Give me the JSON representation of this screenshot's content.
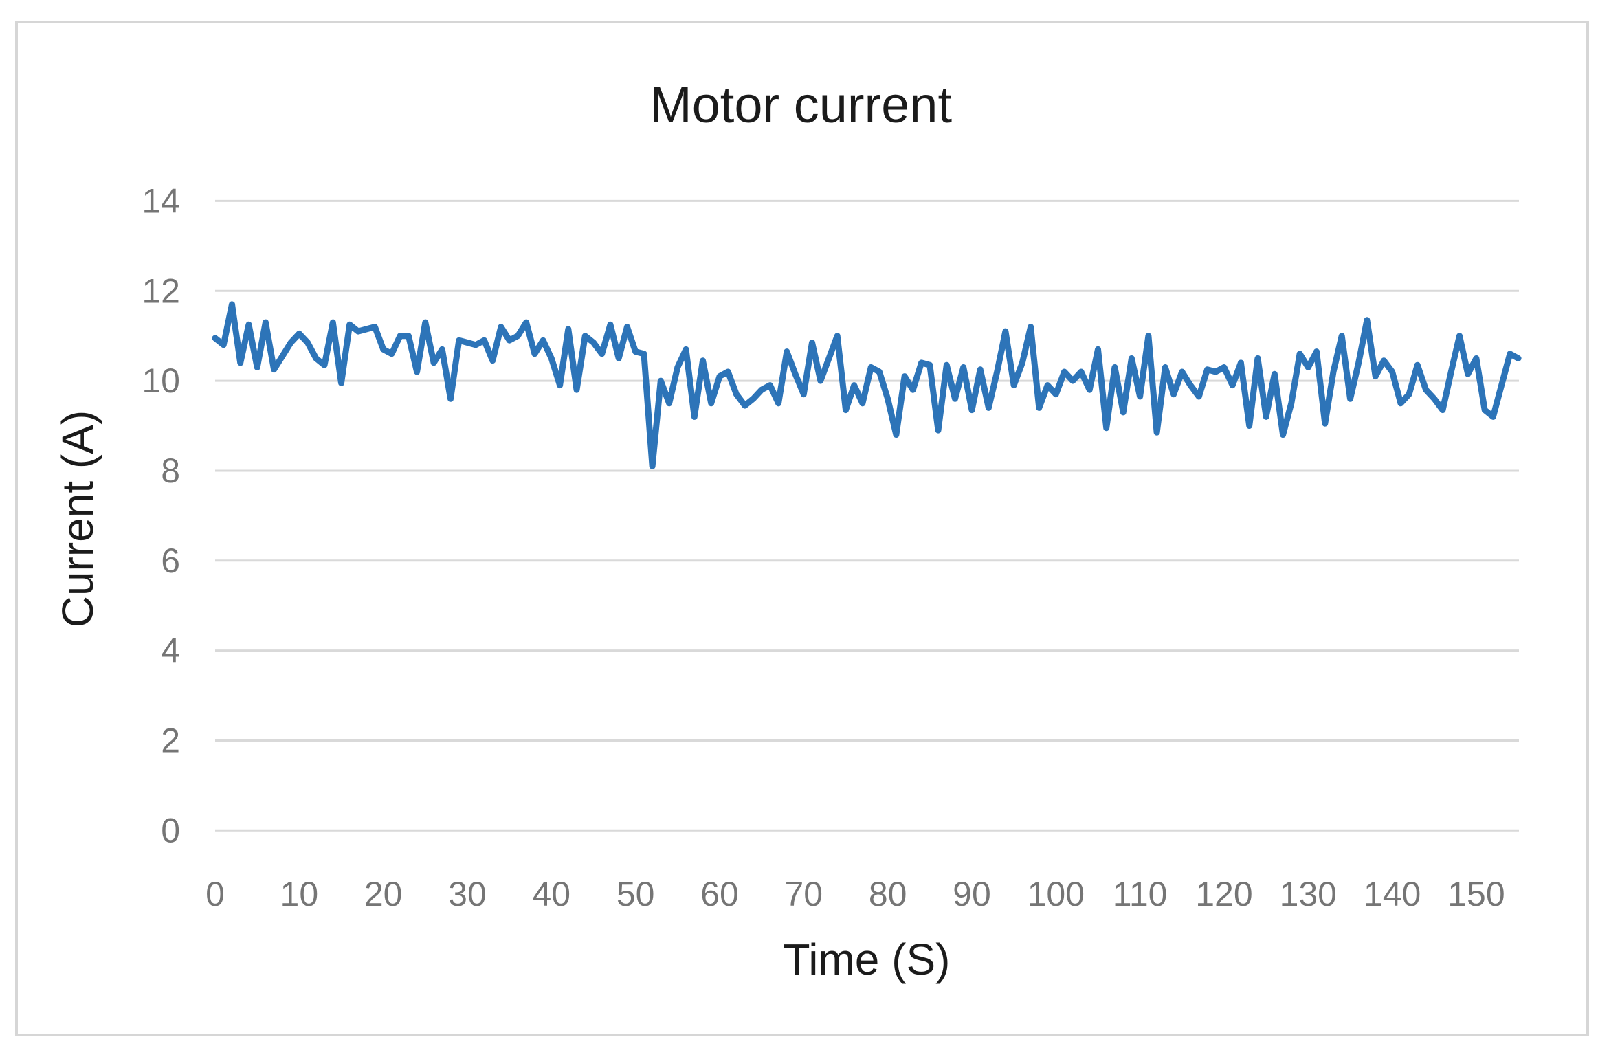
{
  "window": {
    "background": "#ffffff",
    "frame_border_color": "#d6d6d6"
  },
  "chart_data": {
    "type": "line",
    "title": "Motor current",
    "xlabel": "Time (S)",
    "ylabel": "Current (A)",
    "legend": "none",
    "grid": "horizontal",
    "xlim": [
      0,
      155
    ],
    "ylim": [
      0,
      14
    ],
    "x_ticks": [
      0,
      10,
      20,
      30,
      40,
      50,
      60,
      70,
      80,
      90,
      100,
      110,
      120,
      130,
      140,
      150
    ],
    "y_ticks": [
      0,
      2,
      4,
      6,
      8,
      10,
      12,
      14
    ],
    "x_start": 0,
    "x_step": 1,
    "series_name": "Motor current (A)",
    "values": [
      10.95,
      10.8,
      11.7,
      10.4,
      11.25,
      10.3,
      11.3,
      10.25,
      10.55,
      10.85,
      11.05,
      10.85,
      10.5,
      10.35,
      11.3,
      9.95,
      11.25,
      11.1,
      11.15,
      11.2,
      10.7,
      10.6,
      11.0,
      11.0,
      10.2,
      11.3,
      10.4,
      10.7,
      9.6,
      10.9,
      10.85,
      10.8,
      10.9,
      10.45,
      11.2,
      10.9,
      11.0,
      11.3,
      10.6,
      10.9,
      10.5,
      9.9,
      11.15,
      9.8,
      11.0,
      10.85,
      10.6,
      11.25,
      10.5,
      11.2,
      10.65,
      10.6,
      8.1,
      10.0,
      9.5,
      10.3,
      10.7,
      9.2,
      10.45,
      9.5,
      10.1,
      10.2,
      9.7,
      9.45,
      9.6,
      9.8,
      9.9,
      9.5,
      10.65,
      10.15,
      9.7,
      10.85,
      10.0,
      10.5,
      11.0,
      9.35,
      9.9,
      9.5,
      10.3,
      10.2,
      9.6,
      8.8,
      10.1,
      9.8,
      10.4,
      10.35,
      8.9,
      10.35,
      9.6,
      10.3,
      9.35,
      10.25,
      9.4,
      10.2,
      11.1,
      9.9,
      10.4,
      11.2,
      9.4,
      9.9,
      9.7,
      10.2,
      10.0,
      10.2,
      9.8,
      10.7,
      8.95,
      10.3,
      9.3,
      10.5,
      9.65,
      11.0,
      8.85,
      10.3,
      9.7,
      10.2,
      9.9,
      9.65,
      10.25,
      10.2,
      10.3,
      9.9,
      10.4,
      9.0,
      10.5,
      9.2,
      10.15,
      8.8,
      9.5,
      10.6,
      10.3,
      10.65,
      9.05,
      10.2,
      11.0,
      9.6,
      10.4,
      11.35,
      10.1,
      10.45,
      10.2,
      9.5,
      9.7,
      10.35,
      9.8,
      9.6,
      9.35,
      10.2,
      11.0,
      10.15,
      10.5,
      9.35,
      9.2,
      9.9,
      10.6,
      10.5
    ],
    "line_color": "#2d74b8",
    "gridline_color": "#d9d9d9",
    "tick_label_color": "#757575",
    "title_color": "#1b1b1b"
  }
}
